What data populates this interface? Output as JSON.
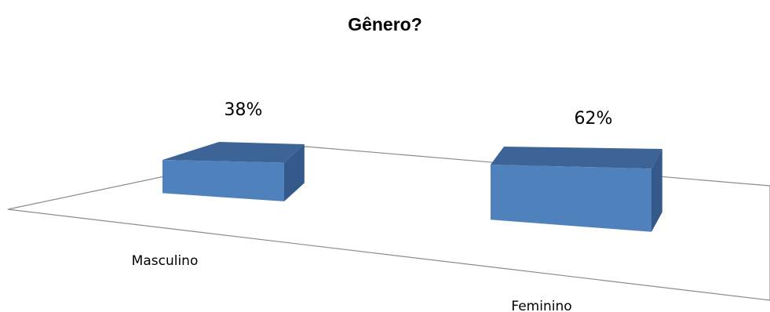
{
  "chart_data": {
    "type": "bar",
    "title": "Gênero?",
    "categories": [
      "Masculino",
      "Feminino"
    ],
    "values": [
      38,
      62
    ],
    "value_labels": [
      "38%",
      "62%"
    ],
    "ylim": [
      0,
      100
    ],
    "xlabel": "",
    "ylabel": "",
    "grid": false,
    "legend": "none",
    "style": "3d-column",
    "colors": {
      "bar_front": "#4f81bd",
      "bar_top": "#3d6496",
      "bar_side": "#34598a",
      "floor_line": "#8c8c8c"
    }
  }
}
